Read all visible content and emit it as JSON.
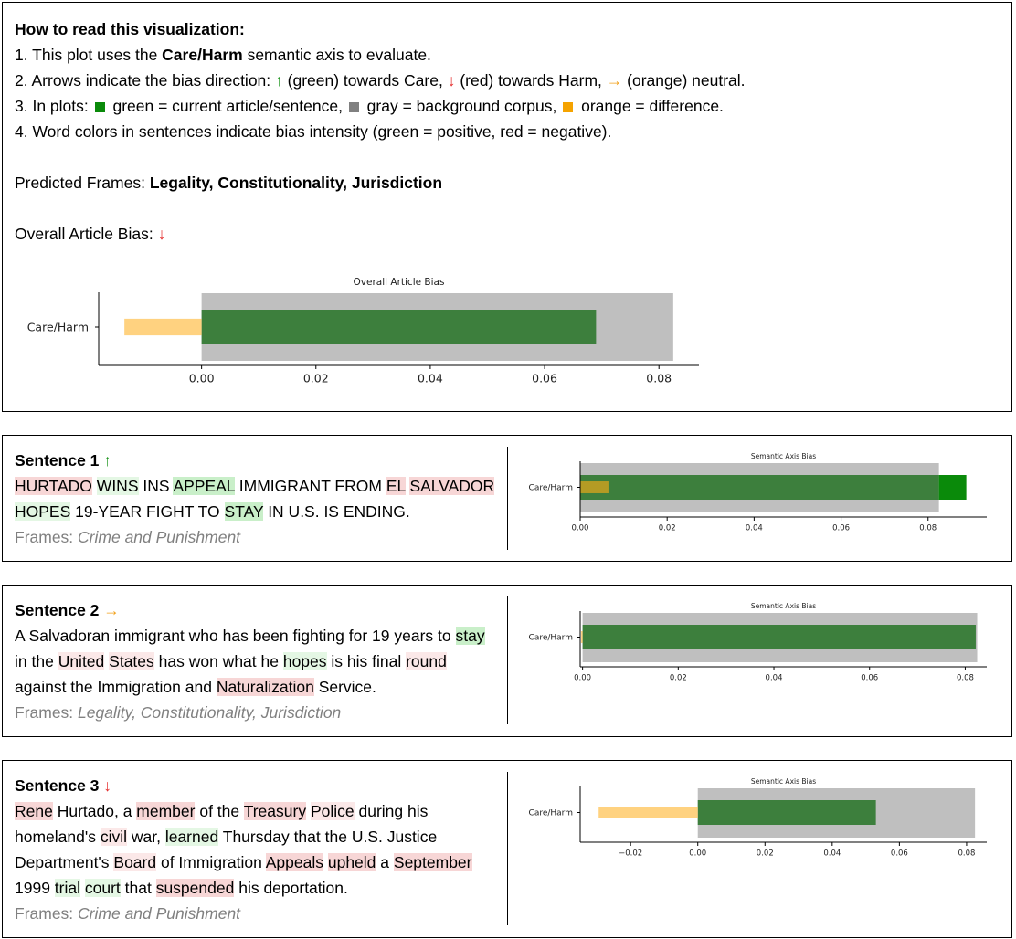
{
  "header": {
    "how_to_title": "How to read this visualization:",
    "line1_pre": "1. This plot uses the ",
    "line1_bold": "Care/Harm",
    "line1_post": " semantic axis to evaluate.",
    "line2_pre": "2. Arrows indicate the bias direction: ",
    "line2_up": "↑",
    "line2_up_text": " (green) towards Care, ",
    "line2_down": "↓",
    "line2_down_text": " (red) towards Harm, ",
    "line2_right": "→",
    "line2_right_text": " (orange) neutral.",
    "line3_pre": "3. In plots: ",
    "line3_green": " green = current article/sentence, ",
    "line3_gray": " gray = background corpus, ",
    "line3_orange": " orange = difference.",
    "line4": "4. Word colors in sentences indicate bias intensity (green = positive, red = negative).",
    "frames_label": "Predicted Frames: ",
    "frames_value": "Legality, Constitutionality, Jurisdiction",
    "bias_label": "Overall Article Bias: ",
    "bias_arrow": "↓"
  },
  "colors": {
    "current": "#3d7f3d",
    "current_bright": "#0a8a0a",
    "background": "#bfbfbf",
    "difference": "#ffd280",
    "arrow_up": "#2a9a2a",
    "arrow_down": "#e53030",
    "arrow_right": "#f2a11b"
  },
  "chart_data": [
    {
      "type": "bar",
      "title": "Overall Article Bias",
      "categories": [
        "Care/Harm"
      ],
      "series": [
        {
          "name": "gray = background corpus",
          "values": [
            0.0825
          ]
        },
        {
          "name": "green = current article/sentence",
          "values": [
            0.069
          ]
        },
        {
          "name": "orange = difference",
          "values": [
            -0.0135
          ]
        }
      ],
      "xlim": [
        -0.018,
        0.087
      ],
      "xticks": [
        "0.00",
        "0.02",
        "0.04",
        "0.06",
        "0.08"
      ],
      "tick_values": [
        0,
        0.02,
        0.04,
        0.06,
        0.08
      ]
    },
    {
      "type": "bar",
      "title": "Semantic Axis Bias",
      "categories": [
        "Care/Harm"
      ],
      "series": [
        {
          "name": "gray = background corpus",
          "values": [
            0.0825
          ]
        },
        {
          "name": "green = current article/sentence",
          "values": [
            0.0888
          ]
        },
        {
          "name": "orange = difference",
          "values": [
            0.0065
          ]
        }
      ],
      "xlim": [
        0,
        0.0935
      ],
      "xticks": [
        "0.00",
        "0.02",
        "0.04",
        "0.06",
        "0.08"
      ],
      "tick_values": [
        0,
        0.02,
        0.04,
        0.06,
        0.08
      ]
    },
    {
      "type": "bar",
      "title": "Semantic Axis Bias",
      "categories": [
        "Care/Harm"
      ],
      "series": [
        {
          "name": "gray = background corpus",
          "values": [
            0.0825
          ]
        },
        {
          "name": "green = current article/sentence",
          "values": [
            0.0822
          ]
        },
        {
          "name": "orange = difference",
          "values": [
            -0.0003
          ]
        }
      ],
      "xlim": [
        -0.0005,
        0.0845
      ],
      "xticks": [
        "0.00",
        "0.02",
        "0.04",
        "0.06",
        "0.08"
      ],
      "tick_values": [
        0,
        0.02,
        0.04,
        0.06,
        0.08
      ]
    },
    {
      "type": "bar",
      "title": "Semantic Axis Bias",
      "categories": [
        "Care/Harm"
      ],
      "series": [
        {
          "name": "gray = background corpus",
          "values": [
            0.0825
          ]
        },
        {
          "name": "green = current article/sentence",
          "values": [
            0.053
          ]
        },
        {
          "name": "orange = difference",
          "values": [
            -0.0295
          ]
        }
      ],
      "xlim": [
        -0.035,
        0.086
      ],
      "xticks": [
        "−0.02",
        "0.00",
        "0.02",
        "0.04",
        "0.06",
        "0.08"
      ],
      "tick_values": [
        -0.02,
        0,
        0.02,
        0.04,
        0.06,
        0.08
      ]
    }
  ],
  "sentences": [
    {
      "title": "Sentence 1",
      "arrow": "↑",
      "frames_label": "Frames: ",
      "frames_value": "Crime and Punishment",
      "words": [
        {
          "t": "HURTADO",
          "c": "neg"
        },
        {
          "t": " "
        },
        {
          "t": "WINS",
          "c": "pos-light"
        },
        {
          "t": " INS "
        },
        {
          "t": "APPEAL",
          "c": "pos"
        },
        {
          "t": " IMMIGRANT FROM "
        },
        {
          "t": "EL",
          "c": "neg"
        },
        {
          "t": " "
        },
        {
          "t": "SALVADOR",
          "c": "neg"
        },
        {
          "br": true
        },
        {
          "t": "HOPES",
          "c": "pos-light"
        },
        {
          "t": " 19-YEAR FIGHT TO "
        },
        {
          "t": "STAY",
          "c": "pos"
        },
        {
          "t": " IN U.S. IS ENDING."
        }
      ]
    },
    {
      "title": "Sentence 2",
      "arrow": "→",
      "frames_label": "Frames: ",
      "frames_value": "Legality, Constitutionality, Jurisdiction",
      "words": [
        {
          "t": "A Salvadoran immigrant who has been fighting for 19 years to "
        },
        {
          "t": "stay",
          "c": "pos"
        },
        {
          "br": true
        },
        {
          "t": "in the "
        },
        {
          "t": "United",
          "c": "neg-light"
        },
        {
          "t": " "
        },
        {
          "t": "States",
          "c": "neg-light"
        },
        {
          "t": " has won what he "
        },
        {
          "t": "hopes",
          "c": "pos-light"
        },
        {
          "t": " is his final "
        },
        {
          "t": "round",
          "c": "neg-light"
        },
        {
          "br": true
        },
        {
          "t": "against the Immigration and "
        },
        {
          "t": "Naturalization",
          "c": "neg"
        },
        {
          "t": " Service."
        }
      ]
    },
    {
      "title": "Sentence 3",
      "arrow": "↓",
      "frames_label": "Frames: ",
      "frames_value": "Crime and Punishment",
      "words": [
        {
          "t": "Rene",
          "c": "neg"
        },
        {
          "t": " Hurtado, a "
        },
        {
          "t": "member",
          "c": "neg"
        },
        {
          "t": " of the "
        },
        {
          "t": "Treasury",
          "c": "neg"
        },
        {
          "t": " "
        },
        {
          "t": "Police",
          "c": "neg-light"
        },
        {
          "t": " during his"
        },
        {
          "br": true
        },
        {
          "t": "homeland's "
        },
        {
          "t": "civil",
          "c": "neg-light"
        },
        {
          "t": " war, "
        },
        {
          "t": "learned",
          "c": "pos-light"
        },
        {
          "t": " Thursday that the U.S. Justice"
        },
        {
          "br": true
        },
        {
          "t": "Department's "
        },
        {
          "t": "Board",
          "c": "neg-light"
        },
        {
          "t": " of Immigration "
        },
        {
          "t": "Appeals",
          "c": "neg"
        },
        {
          "t": " "
        },
        {
          "t": "upheld",
          "c": "neg"
        },
        {
          "t": " a "
        },
        {
          "t": "September",
          "c": "neg"
        },
        {
          "br": true
        },
        {
          "t": "1999 "
        },
        {
          "t": "trial",
          "c": "pos-light"
        },
        {
          "t": " "
        },
        {
          "t": "court",
          "c": "pos-light"
        },
        {
          "t": " that "
        },
        {
          "t": "suspended",
          "c": "neg"
        },
        {
          "t": " his deportation."
        }
      ]
    }
  ]
}
